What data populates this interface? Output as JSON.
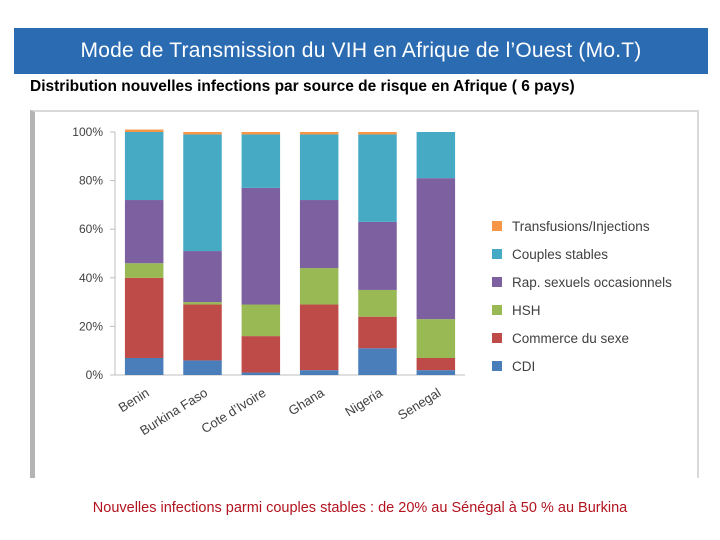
{
  "header": {
    "title": "Mode de Transmission du VIH en Afrique de l’Ouest (Mo.T)"
  },
  "subtitle": "Distribution nouvelles infections par source de risque en Afrique ( 6 pays)",
  "footnote": "Nouvelles infections parmi couples stables : de 20% au Sénégal à  50 % au Burkina",
  "colors": {
    "title_bg": "#2a6bb2",
    "footnote": "#b2131e"
  },
  "chart_data": {
    "type": "bar",
    "stacked": true,
    "categories": [
      "Benin",
      "Burkina Faso",
      "Cote d’Ivoire",
      "Ghana",
      "Nigeria",
      "Senegal"
    ],
    "series": [
      {
        "name": "CDI",
        "color": "#4a7ebb",
        "values": [
          7,
          6,
          1,
          2,
          11,
          2
        ]
      },
      {
        "name": "Commerce du sexe",
        "color": "#be4b48",
        "values": [
          33,
          23,
          15,
          27,
          13,
          5
        ]
      },
      {
        "name": "HSH",
        "color": "#98b954",
        "values": [
          6,
          1,
          13,
          15,
          11,
          16
        ]
      },
      {
        "name": "Rap. sexuels occasionnels",
        "color": "#7d60a0",
        "values": [
          26,
          21,
          48,
          28,
          28,
          58
        ]
      },
      {
        "name": "Couples stables",
        "color": "#46aac5",
        "values": [
          28,
          48,
          22,
          27,
          36,
          19
        ]
      },
      {
        "name": "Transfusions/Injections",
        "color": "#f79646",
        "values": [
          1,
          1,
          1,
          1,
          1,
          0
        ]
      }
    ],
    "yticks": [
      "0%",
      "20%",
      "40%",
      "60%",
      "80%",
      "100%"
    ],
    "ylim": [
      0,
      100
    ],
    "legend_position": "right"
  }
}
